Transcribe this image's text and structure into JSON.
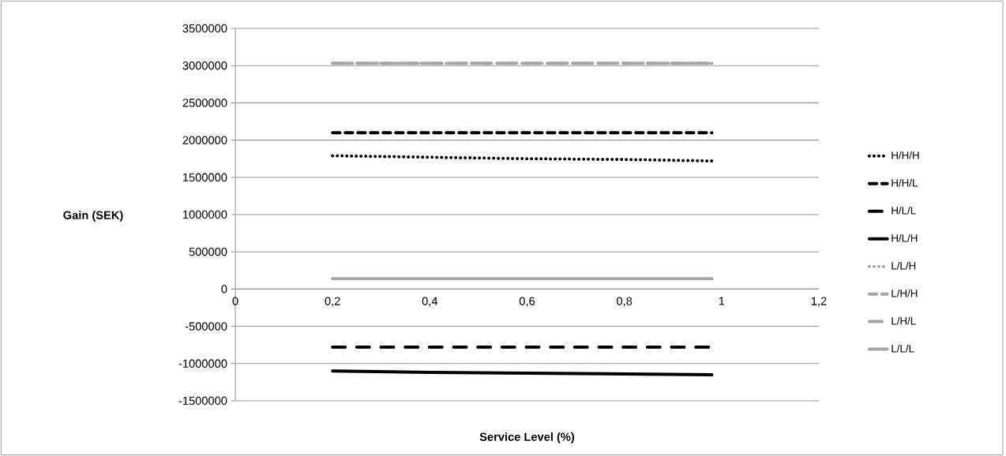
{
  "chart_data": {
    "type": "line",
    "xlabel": "Service Level (%)",
    "ylabel": "Gain (SEK)",
    "x": [
      0.2,
      0.4,
      0.6,
      0.8,
      0.98
    ],
    "series": [
      {
        "name": "H/H/H",
        "color": "#000000",
        "line_style": "dotted",
        "values": [
          1790000,
          1770000,
          1750000,
          1740000,
          1720000
        ]
      },
      {
        "name": "H/H/L",
        "color": "#000000",
        "line_style": "dashed",
        "values": [
          2100000,
          2100000,
          2100000,
          2100000,
          2100000
        ]
      },
      {
        "name": "H/L/L",
        "color": "#000000",
        "line_style": "dashed",
        "values": [
          -780000,
          -780000,
          -780000,
          -780000,
          -780000
        ]
      },
      {
        "name": "H/L/H",
        "color": "#000000",
        "line_style": "solid",
        "values": [
          -1100000,
          -1120000,
          -1130000,
          -1140000,
          -1150000
        ]
      },
      {
        "name": "L/L/H",
        "color": "#a6a6a6",
        "line_style": "dotted",
        "values": [
          null,
          null,
          null,
          null,
          null
        ]
      },
      {
        "name": "L/H/H",
        "color": "#a6a6a6",
        "line_style": "dashed",
        "values": [
          3030000,
          3030000,
          3030000,
          3030000,
          3030000
        ]
      },
      {
        "name": "L/H/L",
        "color": "#a6a6a6",
        "line_style": "dashed",
        "values": [
          3030000,
          3030000,
          3030000,
          3030000,
          3030000
        ]
      },
      {
        "name": "L/L/L",
        "color": "#a6a6a6",
        "line_style": "solid",
        "values": [
          140000,
          140000,
          140000,
          140000,
          140000
        ]
      }
    ],
    "xlim": [
      0,
      1.2
    ],
    "xticks": [
      0,
      {
        "value": 0.2,
        "label": "0,2"
      },
      {
        "value": 0.4,
        "label": "0,4"
      },
      {
        "value": 0.6,
        "label": "0,6"
      },
      {
        "value": 0.8,
        "label": "0,8"
      },
      1,
      {
        "value": 1.2,
        "label": "1,2"
      }
    ],
    "ylim": [
      -1500000,
      3500000
    ],
    "yticks": [
      -1500000,
      -1000000,
      -500000,
      0,
      500000,
      1000000,
      1500000,
      2000000,
      2500000,
      3000000,
      3500000
    ],
    "grid": "y",
    "legend": "right",
    "marker": "none"
  }
}
